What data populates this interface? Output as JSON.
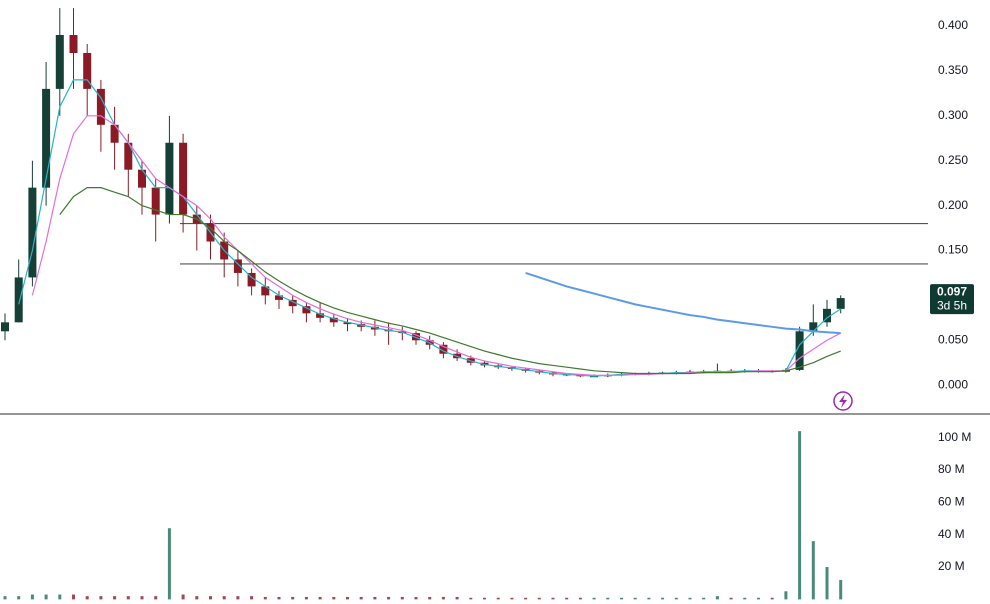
{
  "chart_data": [
    {
      "type": "candlestick",
      "up_color": "#163f36",
      "down_color": "#8b1a24",
      "ylim": [
        -0.031,
        0.429
      ],
      "yticks": [
        {
          "value": 0,
          "label": "0.000"
        },
        {
          "value": 0.05,
          "label": "0.050"
        },
        {
          "value": 0.1,
          "label": "0.100"
        },
        {
          "value": 0.15,
          "label": "0.150"
        },
        {
          "value": 0.2,
          "label": "0.200"
        },
        {
          "value": 0.25,
          "label": "0.250"
        },
        {
          "value": 0.3,
          "label": "0.300"
        },
        {
          "value": 0.35,
          "label": "0.350"
        },
        {
          "value": 0.4,
          "label": "0.400"
        }
      ],
      "candles": [
        [
          0.06,
          0.08,
          0.05,
          0.07
        ],
        [
          0.07,
          0.14,
          0.07,
          0.12
        ],
        [
          0.12,
          0.25,
          0.11,
          0.22
        ],
        [
          0.22,
          0.36,
          0.2,
          0.33
        ],
        [
          0.33,
          0.42,
          0.3,
          0.39
        ],
        [
          0.39,
          0.42,
          0.33,
          0.37
        ],
        [
          0.37,
          0.38,
          0.3,
          0.33
        ],
        [
          0.33,
          0.34,
          0.26,
          0.29
        ],
        [
          0.29,
          0.31,
          0.24,
          0.27
        ],
        [
          0.27,
          0.28,
          0.21,
          0.24
        ],
        [
          0.24,
          0.25,
          0.19,
          0.22
        ],
        [
          0.22,
          0.23,
          0.16,
          0.19
        ],
        [
          0.19,
          0.3,
          0.18,
          0.27
        ],
        [
          0.27,
          0.28,
          0.17,
          0.19
        ],
        [
          0.19,
          0.2,
          0.15,
          0.18
        ],
        [
          0.18,
          0.19,
          0.14,
          0.16
        ],
        [
          0.16,
          0.17,
          0.12,
          0.14
        ],
        [
          0.14,
          0.15,
          0.11,
          0.125
        ],
        [
          0.125,
          0.13,
          0.1,
          0.11
        ],
        [
          0.11,
          0.12,
          0.09,
          0.1
        ],
        [
          0.1,
          0.105,
          0.085,
          0.095
        ],
        [
          0.095,
          0.1,
          0.08,
          0.088
        ],
        [
          0.088,
          0.092,
          0.07,
          0.08
        ],
        [
          0.08,
          0.092,
          0.07,
          0.075
        ],
        [
          0.075,
          0.08,
          0.065,
          0.07
        ],
        [
          0.07,
          0.075,
          0.06,
          0.068
        ],
        [
          0.068,
          0.072,
          0.06,
          0.065
        ],
        [
          0.065,
          0.072,
          0.055,
          0.062
        ],
        [
          0.062,
          0.07,
          0.045,
          0.06
        ],
        [
          0.06,
          0.065,
          0.05,
          0.058
        ],
        [
          0.058,
          0.06,
          0.045,
          0.05
        ],
        [
          0.05,
          0.055,
          0.04,
          0.045
        ],
        [
          0.045,
          0.048,
          0.03,
          0.035
        ],
        [
          0.035,
          0.04,
          0.027,
          0.03
        ],
        [
          0.03,
          0.033,
          0.022,
          0.025
        ],
        [
          0.025,
          0.027,
          0.02,
          0.022
        ],
        [
          0.022,
          0.024,
          0.018,
          0.02
        ],
        [
          0.02,
          0.021,
          0.016,
          0.018
        ],
        [
          0.018,
          0.019,
          0.014,
          0.016
        ],
        [
          0.016,
          0.017,
          0.012,
          0.014
        ],
        [
          0.014,
          0.015,
          0.01,
          0.012
        ],
        [
          0.012,
          0.013,
          0.01,
          0.011
        ],
        [
          0.011,
          0.012,
          0.009,
          0.01
        ],
        [
          0.01,
          0.012,
          0.009,
          0.01
        ],
        [
          0.01,
          0.013,
          0.009,
          0.011
        ],
        [
          0.011,
          0.014,
          0.01,
          0.012
        ],
        [
          0.012,
          0.014,
          0.011,
          0.013
        ],
        [
          0.013,
          0.015,
          0.011,
          0.013
        ],
        [
          0.013,
          0.015,
          0.012,
          0.014
        ],
        [
          0.014,
          0.016,
          0.012,
          0.014
        ],
        [
          0.014,
          0.017,
          0.013,
          0.015
        ],
        [
          0.015,
          0.017,
          0.013,
          0.015
        ],
        [
          0.015,
          0.024,
          0.014,
          0.016
        ],
        [
          0.016,
          0.018,
          0.014,
          0.015
        ],
        [
          0.015,
          0.018,
          0.014,
          0.016
        ],
        [
          0.016,
          0.018,
          0.014,
          0.016
        ],
        [
          0.016,
          0.017,
          0.014,
          0.015
        ],
        [
          0.015,
          0.019,
          0.014,
          0.017
        ],
        [
          0.017,
          0.065,
          0.016,
          0.06
        ],
        [
          0.06,
          0.09,
          0.055,
          0.07
        ],
        [
          0.07,
          0.095,
          0.065,
          0.085
        ],
        [
          0.085,
          0.1,
          0.08,
          0.097
        ]
      ],
      "series": [
        {
          "color": "#26b5c9",
          "values": [
            null,
            0.09,
            0.15,
            0.23,
            0.31,
            0.34,
            0.34,
            0.32,
            0.29,
            0.27,
            0.24,
            0.22,
            0.22,
            0.21,
            0.19,
            0.17,
            0.15,
            0.135,
            0.12,
            0.11,
            0.1,
            0.093,
            0.086,
            0.079,
            0.074,
            0.07,
            0.067,
            0.064,
            0.061,
            0.059,
            0.053,
            0.047,
            0.038,
            0.032,
            0.027,
            0.023,
            0.021,
            0.019,
            0.017,
            0.015,
            0.013,
            0.012,
            0.011,
            0.01,
            0.011,
            0.012,
            0.012,
            0.013,
            0.013,
            0.014,
            0.014,
            0.015,
            0.015,
            0.015,
            0.016,
            0.016,
            0.015,
            0.016,
            0.045,
            0.06,
            0.075,
            0.085
          ]
        },
        {
          "color": "#e36fd9",
          "values": [
            null,
            null,
            0.1,
            0.16,
            0.23,
            0.28,
            0.3,
            0.3,
            0.29,
            0.27,
            0.25,
            0.23,
            0.22,
            0.21,
            0.2,
            0.185,
            0.165,
            0.15,
            0.135,
            0.12,
            0.11,
            0.1,
            0.092,
            0.085,
            0.079,
            0.074,
            0.07,
            0.067,
            0.064,
            0.061,
            0.056,
            0.05,
            0.043,
            0.037,
            0.031,
            0.027,
            0.024,
            0.021,
            0.019,
            0.017,
            0.015,
            0.013,
            0.012,
            0.011,
            0.011,
            0.011,
            0.012,
            0.012,
            0.013,
            0.013,
            0.014,
            0.014,
            0.015,
            0.015,
            0.015,
            0.016,
            0.016,
            0.016,
            0.03,
            0.04,
            0.05,
            0.058
          ]
        },
        {
          "color": "#3f7a2e",
          "values": [
            null,
            null,
            null,
            null,
            0.19,
            0.21,
            0.22,
            0.22,
            0.215,
            0.21,
            0.2,
            0.195,
            0.19,
            0.19,
            0.185,
            0.175,
            0.16,
            0.15,
            0.138,
            0.126,
            0.116,
            0.107,
            0.099,
            0.092,
            0.086,
            0.081,
            0.077,
            0.073,
            0.069,
            0.066,
            0.062,
            0.058,
            0.053,
            0.048,
            0.043,
            0.038,
            0.034,
            0.03,
            0.027,
            0.024,
            0.022,
            0.02,
            0.018,
            0.016,
            0.015,
            0.014,
            0.013,
            0.013,
            0.013,
            0.013,
            0.013,
            0.014,
            0.014,
            0.014,
            0.015,
            0.015,
            0.015,
            0.016,
            0.02,
            0.025,
            0.032,
            0.038
          ]
        },
        {
          "color": "#5b9be6",
          "values": [
            null,
            null,
            null,
            null,
            null,
            null,
            null,
            null,
            null,
            null,
            null,
            null,
            null,
            null,
            null,
            null,
            null,
            null,
            null,
            null,
            null,
            null,
            null,
            null,
            null,
            null,
            null,
            null,
            null,
            null,
            null,
            null,
            null,
            null,
            null,
            null,
            null,
            null,
            0.125,
            0.12,
            0.115,
            0.11,
            0.106,
            0.102,
            0.098,
            0.094,
            0.09,
            0.087,
            0.084,
            0.081,
            0.078,
            0.076,
            0.073,
            0.071,
            0.069,
            0.067,
            0.065,
            0.063,
            0.062,
            0.06,
            0.059,
            0.058
          ]
        }
      ],
      "hlines": [
        0.18,
        0.135
      ],
      "last_price_label": "0.097",
      "countdown": "3d 5h"
    },
    {
      "type": "bar",
      "ylim": [
        -1,
        114
      ],
      "yticks": [
        {
          "value": 20,
          "label": "20 M"
        },
        {
          "value": 40,
          "label": "40 M"
        },
        {
          "value": 60,
          "label": "60 M"
        },
        {
          "value": 80,
          "label": "80 M"
        },
        {
          "value": 100,
          "label": "100 M"
        }
      ],
      "values": [
        2,
        2,
        3,
        3,
        3,
        3,
        2,
        2,
        2,
        2,
        2,
        2,
        44,
        3,
        2,
        2,
        2,
        2,
        2,
        1.5,
        1.5,
        1.5,
        1.5,
        1.5,
        1.5,
        1.5,
        1.5,
        1.5,
        1.5,
        1.5,
        1.5,
        1.5,
        1.5,
        1.5,
        1,
        1,
        1,
        1,
        1,
        1,
        1,
        1,
        1,
        1,
        1,
        1,
        1,
        1,
        1,
        1,
        1,
        1,
        2,
        1,
        1,
        1,
        1,
        5,
        104,
        36,
        20,
        12
      ]
    }
  ]
}
